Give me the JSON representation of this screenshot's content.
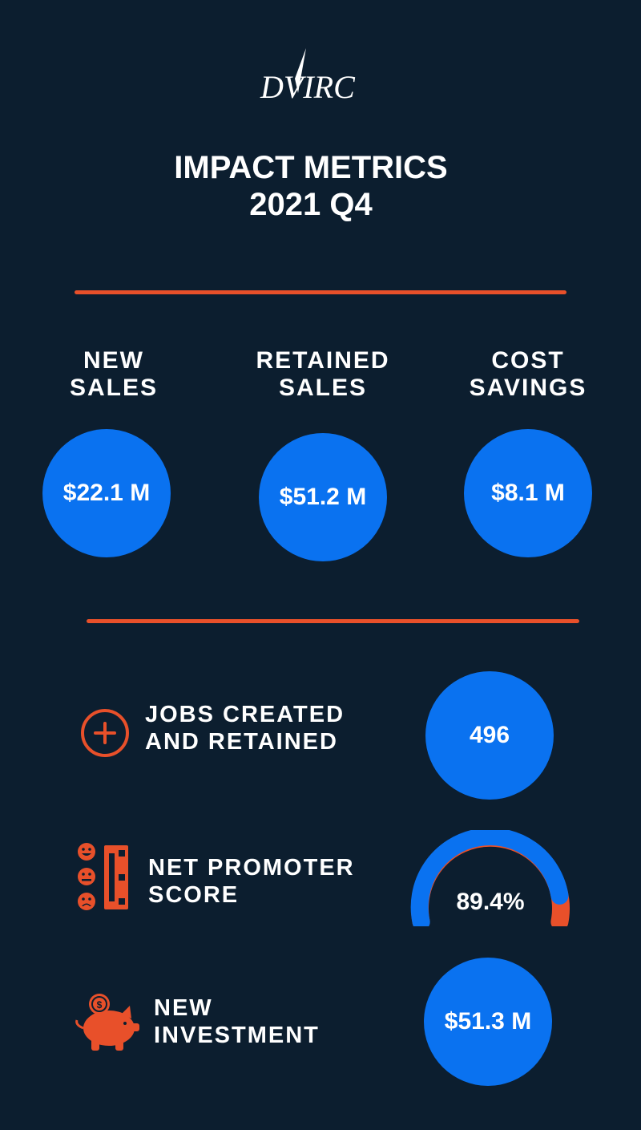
{
  "brand": {
    "logo_text": "DVIRC"
  },
  "header": {
    "title_line1": "IMPACT METRICS",
    "title_line2": "2021 Q4"
  },
  "top_metrics": [
    {
      "label_line1": "NEW",
      "label_line2": "SALES",
      "value": "$22.1 M"
    },
    {
      "label_line1": "RETAINED",
      "label_line2": "SALES",
      "value": "$51.2 M"
    },
    {
      "label_line1": "COST",
      "label_line2": "SAVINGS",
      "value": "$8.1 M"
    }
  ],
  "bottom_metrics": {
    "jobs": {
      "label_line1": "JOBS CREATED",
      "label_line2": "AND RETAINED",
      "value": "496",
      "icon": "plus-circle-icon"
    },
    "nps": {
      "label_line1": "NET PROMOTER",
      "label_line2": "SCORE",
      "value": "89.4%",
      "fraction": 0.894,
      "icon": "rating-faces-icon"
    },
    "investment": {
      "label_line1": "NEW",
      "label_line2": "INVESTMENT",
      "value": "$51.3 M",
      "icon": "piggy-bank-icon"
    }
  },
  "colors": {
    "background": "#0c1e2f",
    "accent": "#e8502a",
    "circle": "#0a72f0",
    "text": "#ffffff"
  }
}
